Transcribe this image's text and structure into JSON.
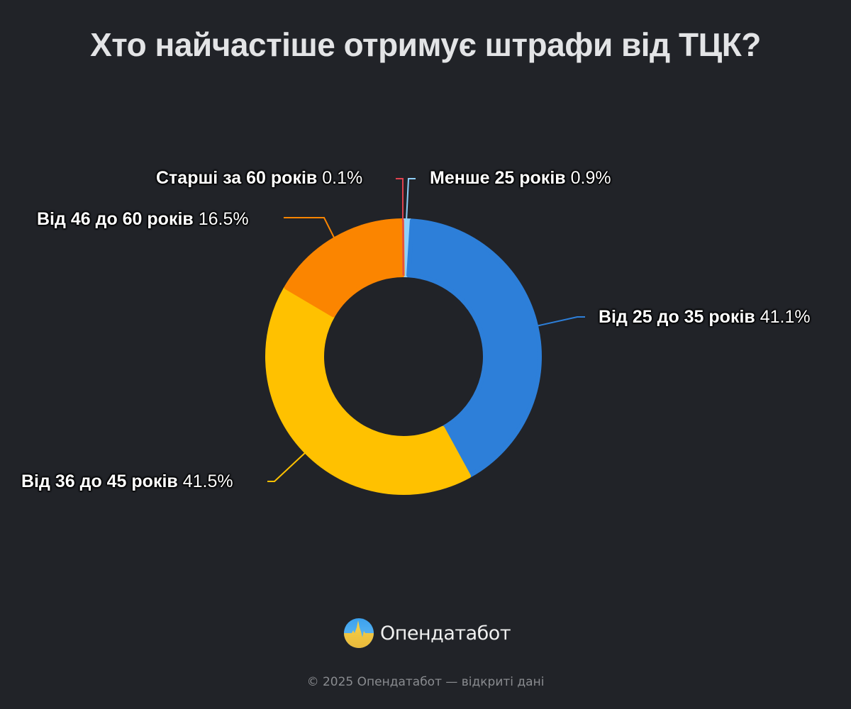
{
  "title": "Хто найчастіше отримує штрафи від ТЦК?",
  "brand": {
    "name": "Опендатабот",
    "logo_icon": "opendatabot-logo-icon"
  },
  "footer": "© 2025 Опендатабот — відкриті дані",
  "colors": {
    "background": "#212328",
    "title": "#e3e4e6",
    "under_25": "#8fd0fb",
    "from_25_to_35": "#2d7fd9",
    "from_36_to_45": "#ffc100",
    "from_46_to_60": "#fb8500",
    "over_60": "#e0424f"
  },
  "labels": {
    "over_60": {
      "name": "Старші за 60 років",
      "pct": "0.1%"
    },
    "under_25": {
      "name": "Менше 25 років",
      "pct": "0.9%"
    },
    "from_46_to_60": {
      "name": "Від 46 до 60 років",
      "pct": "16.5%"
    },
    "from_25_to_35": {
      "name": "Від 25 до 35 років",
      "pct": "41.1%"
    },
    "from_36_to_45": {
      "name": "Від 36 до 45 років",
      "pct": "41.5%"
    }
  },
  "chart_data": {
    "type": "pie",
    "subtype": "donut",
    "title": "Хто найчастіше отримує штрафи від ТЦК?",
    "categories": [
      "Менше 25 років",
      "Від 25 до 35 років",
      "Від 36 до 45 років",
      "Від 46 до 60 років",
      "Старші за 60 років"
    ],
    "values": [
      0.9,
      41.1,
      41.5,
      16.5,
      0.1
    ],
    "unit": "%",
    "colors": [
      "#8fd0fb",
      "#2d7fd9",
      "#ffc100",
      "#fb8500",
      "#e0424f"
    ],
    "start_angle_deg": 0,
    "direction": "clockwise",
    "center": [
      569,
      503
    ],
    "outer_radius": 192,
    "inner_radius": 115,
    "legend": "none",
    "data_labels": "outside with leader lines"
  }
}
